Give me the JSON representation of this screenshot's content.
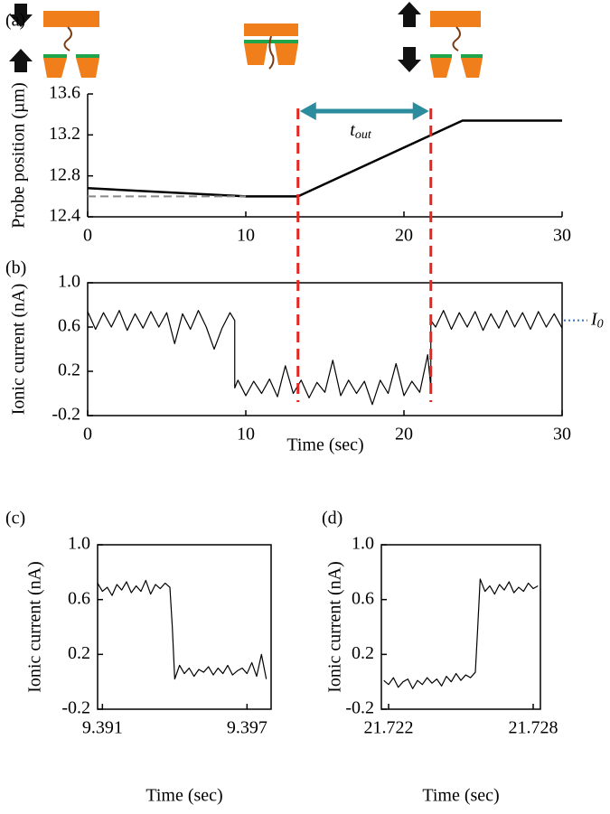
{
  "chart_data": [
    {
      "type": "line",
      "panel_label": "(a)",
      "ylabel": "Probe position (µm)",
      "frame": "axes",
      "xlim": [
        0,
        30
      ],
      "xticks": [
        0,
        10,
        20,
        30
      ],
      "ylim": [
        12.4,
        13.6
      ],
      "yticks": [
        12.4,
        12.8,
        13.2,
        13.6
      ],
      "series": [
        {
          "color": "#000000",
          "dashed": false,
          "x": [
            0,
            10,
            13.3,
            23.7,
            30
          ],
          "values": [
            12.68,
            12.6,
            12.6,
            13.34,
            13.34
          ]
        },
        {
          "color": "#888888",
          "dashed": true,
          "x": [
            0,
            10
          ],
          "values": [
            12.6,
            12.6
          ]
        }
      ],
      "vlines": {
        "x": [
          13.3,
          21.7
        ],
        "color": "#e8241f"
      },
      "arrow": {
        "from": 13.3,
        "to": 21.7,
        "color": "#2b8c9e",
        "label": "t",
        "label_sub": "out"
      }
    },
    {
      "type": "line",
      "panel_label": "(b)",
      "ylabel": "Ionic current (nA)",
      "xlabel": "Time (sec)",
      "frame": "box",
      "xlim": [
        0,
        30
      ],
      "xticks": [
        0,
        10,
        20,
        30
      ],
      "ylim": [
        -0.2,
        1.0
      ],
      "yticks": [
        -0.2,
        0.2,
        0.6,
        {
          "value": 1.0,
          "label": "1.0"
        }
      ],
      "x": [
        0,
        0.5,
        1,
        1.5,
        2,
        2.5,
        3,
        3.5,
        4,
        4.5,
        5,
        5.5,
        6,
        6.5,
        7,
        7.5,
        8,
        8.5,
        9,
        9.3,
        9.3,
        9.5,
        10,
        10.5,
        11,
        11.5,
        12,
        12.5,
        13,
        13.5,
        14,
        14.5,
        15,
        15.5,
        16,
        16.5,
        17,
        17.5,
        18,
        18.5,
        19,
        19.5,
        20,
        20.5,
        21,
        21.5,
        21.7,
        21.7,
        22,
        22.5,
        23,
        23.5,
        24,
        24.5,
        25,
        25.5,
        26,
        26.5,
        27,
        27.5,
        28,
        28.5,
        29,
        29.5,
        30
      ],
      "series": [
        {
          "color": "#000000",
          "dashed": false,
          "values": [
            0.74,
            0.58,
            0.73,
            0.6,
            0.75,
            0.57,
            0.72,
            0.59,
            0.74,
            0.6,
            0.73,
            0.45,
            0.72,
            0.58,
            0.75,
            0.6,
            0.4,
            0.59,
            0.73,
            0.66,
            0.05,
            0.12,
            -0.02,
            0.11,
            0.0,
            0.13,
            -0.03,
            0.25,
            0.0,
            0.12,
            -0.04,
            0.1,
            0.01,
            0.3,
            -0.02,
            0.12,
            0.0,
            0.11,
            -0.1,
            0.12,
            0.0,
            0.27,
            -0.02,
            0.11,
            0.01,
            0.35,
            0.05,
            0.66,
            0.6,
            0.75,
            0.58,
            0.73,
            0.6,
            0.74,
            0.57,
            0.72,
            0.59,
            0.75,
            0.6,
            0.73,
            0.58,
            0.74,
            0.6,
            0.72,
            0.59
          ]
        }
      ],
      "level_label": {
        "y": 0.66,
        "text": "I",
        "sub": "0",
        "color": "#3a6fc4"
      }
    },
    {
      "type": "line",
      "panel_label": "(c)",
      "ylabel": "Ionic current (nA)",
      "xlabel": "Time (sec)",
      "frame": "box",
      "xlim": [
        9.3908,
        9.398
      ],
      "xticks": [
        9.391,
        9.397
      ],
      "ylim": [
        -0.2,
        1.0
      ],
      "yticks": [
        -0.2,
        0.2,
        0.6,
        {
          "value": 1.0,
          "label": "1.0"
        }
      ],
      "x": [
        9.3908,
        9.391,
        9.3912,
        9.3914,
        9.3916,
        9.3918,
        9.392,
        9.3922,
        9.3924,
        9.3926,
        9.3928,
        9.393,
        9.3932,
        9.3934,
        9.3936,
        9.3938,
        9.3939,
        9.394,
        9.3942,
        9.3944,
        9.3946,
        9.3948,
        9.395,
        9.3952,
        9.3954,
        9.3956,
        9.3958,
        9.396,
        9.3962,
        9.3964,
        9.3966,
        9.3968,
        9.397,
        9.3972,
        9.3974,
        9.3976,
        9.3978
      ],
      "series": [
        {
          "color": "#000000",
          "dashed": false,
          "values": [
            0.72,
            0.66,
            0.69,
            0.63,
            0.71,
            0.67,
            0.73,
            0.65,
            0.7,
            0.66,
            0.74,
            0.64,
            0.71,
            0.68,
            0.72,
            0.69,
            0.4,
            0.02,
            0.12,
            0.06,
            0.1,
            0.04,
            0.09,
            0.07,
            0.11,
            0.05,
            0.1,
            0.06,
            0.12,
            0.05,
            0.08,
            0.1,
            0.06,
            0.14,
            0.04,
            0.2,
            0.02
          ]
        }
      ]
    },
    {
      "type": "line",
      "panel_label": "(d)",
      "ylabel": "Ionic current (nA)",
      "xlabel": "Time (sec)",
      "frame": "box",
      "xlim": [
        21.7217,
        21.7283
      ],
      "xticks": [
        21.722,
        21.728
      ],
      "ylim": [
        -0.2,
        1.0
      ],
      "yticks": [
        -0.2,
        0.2,
        0.6,
        {
          "value": 1.0,
          "label": "1.0"
        }
      ],
      "x": [
        21.7218,
        21.722,
        21.7222,
        21.7224,
        21.7226,
        21.7228,
        21.723,
        21.7232,
        21.7234,
        21.7236,
        21.7238,
        21.724,
        21.7242,
        21.7244,
        21.7246,
        21.7248,
        21.725,
        21.7252,
        21.7254,
        21.7256,
        21.7257,
        21.7258,
        21.726,
        21.7262,
        21.7264,
        21.7266,
        21.7268,
        21.727,
        21.7272,
        21.7274,
        21.7276,
        21.7278,
        21.728,
        21.7282
      ],
      "series": [
        {
          "color": "#000000",
          "dashed": false,
          "values": [
            0.01,
            -0.02,
            0.03,
            -0.04,
            0.0,
            0.02,
            -0.05,
            0.01,
            -0.02,
            0.03,
            -0.01,
            0.02,
            -0.03,
            0.04,
            0.0,
            0.06,
            0.01,
            0.05,
            0.03,
            0.07,
            0.4,
            0.75,
            0.66,
            0.7,
            0.64,
            0.71,
            0.67,
            0.73,
            0.65,
            0.69,
            0.66,
            0.72,
            0.68,
            0.7
          ]
        }
      ]
    }
  ]
}
